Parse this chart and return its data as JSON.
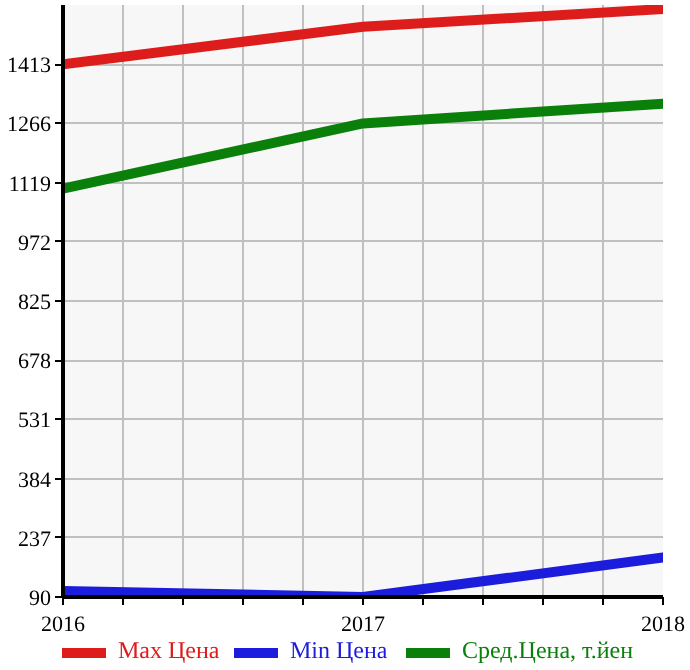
{
  "chart_data": {
    "type": "line",
    "x": [
      2016,
      2017,
      2018
    ],
    "series": [
      {
        "name": "Max Цена",
        "color": "#dd1c1c",
        "values": [
          1413,
          1506,
          1550
        ]
      },
      {
        "name": "Min Цена",
        "color": "#1c1cdd",
        "values": [
          105,
          90,
          188
        ]
      },
      {
        "name": "Сред.Цена, т.йен",
        "color": "#0a800a",
        "values": [
          1104,
          1266,
          1315
        ]
      }
    ],
    "ylim": [
      90,
      1560
    ],
    "yticks": [
      90,
      237,
      384,
      531,
      678,
      825,
      972,
      1119,
      1266,
      1413
    ],
    "xlim": [
      2016,
      2018
    ],
    "xticks": [
      2016,
      {
        "value": 2016.2,
        "label": null
      },
      {
        "value": 2016.4,
        "label": null
      },
      {
        "value": 2016.6,
        "label": null
      },
      {
        "value": 2016.8,
        "label": null
      },
      2017,
      {
        "value": 2017.2,
        "label": null
      },
      {
        "value": 2017.4,
        "label": null
      },
      {
        "value": 2017.6,
        "label": null
      },
      {
        "value": 2017.8,
        "label": null
      },
      2018
    ],
    "grid": true,
    "legend": "bottom",
    "marker": "none",
    "line_style": "solid"
  }
}
